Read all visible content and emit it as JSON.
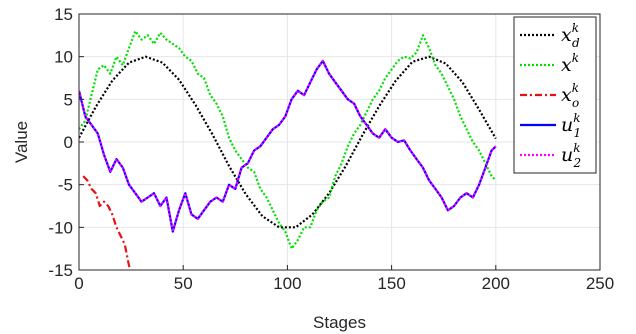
{
  "chart_data": {
    "type": "line",
    "title": "",
    "xlabel": "Stages",
    "ylabel": "Value",
    "xlim": [
      0,
      250
    ],
    "ylim": [
      -15,
      15
    ],
    "xticks": [
      0,
      50,
      100,
      150,
      200,
      250
    ],
    "yticks": [
      -15,
      -10,
      -5,
      0,
      5,
      10,
      15
    ],
    "x_tick_labels": [
      "0",
      "50",
      "100",
      "150",
      "200",
      "250"
    ],
    "y_tick_labels": [
      "-15",
      "-10",
      "-5",
      "0",
      "5",
      "10",
      "15"
    ],
    "grid": true,
    "legend_position": "top-right",
    "series": [
      {
        "name": "x_d^k",
        "base": "x",
        "sup": "k",
        "sub": "d",
        "color": "#000000",
        "style": "dotted",
        "x": [
          0,
          8,
          16,
          24,
          32,
          40,
          48,
          56,
          64,
          72,
          80,
          88,
          96,
          104,
          112,
          120,
          128,
          136,
          144,
          152,
          160,
          168,
          176,
          184,
          192,
          200
        ],
        "y": [
          0.5,
          4.1,
          7.2,
          9.3,
          10.0,
          9.3,
          7.3,
          4.3,
          0.9,
          -2.8,
          -6.1,
          -8.7,
          -10.0,
          -10.0,
          -8.5,
          -6.0,
          -2.8,
          0.8,
          4.2,
          7.2,
          9.4,
          10.0,
          9.2,
          7.0,
          3.8,
          0.4
        ]
      },
      {
        "name": "x^k",
        "base": "x",
        "sup": "k",
        "sub": "",
        "color": "#00e000",
        "style": "dotted",
        "x": [
          0,
          3,
          6,
          9,
          12,
          15,
          18,
          21,
          24,
          27,
          30,
          33,
          36,
          39,
          42,
          45,
          48,
          51,
          54,
          57,
          60,
          63,
          66,
          69,
          72,
          75,
          78,
          81,
          84,
          87,
          90,
          93,
          96,
          99,
          102,
          105,
          108,
          111,
          114,
          117,
          120,
          123,
          126,
          129,
          132,
          135,
          138,
          141,
          144,
          147,
          150,
          153,
          156,
          159,
          162,
          165,
          168,
          171,
          174,
          177,
          180,
          183,
          186,
          189,
          192,
          195,
          198,
          200
        ],
        "y": [
          1.5,
          2.5,
          5.5,
          8.5,
          9.0,
          8.0,
          10.0,
          9.0,
          11.0,
          13.0,
          12.0,
          12.5,
          11.5,
          12.8,
          12.0,
          11.5,
          11.0,
          10.0,
          9.5,
          8.0,
          7.5,
          5.5,
          4.5,
          3.0,
          0.5,
          -1.0,
          -2.0,
          -3.0,
          -3.5,
          -5.5,
          -6.5,
          -8.0,
          -9.5,
          -10.5,
          -12.5,
          -11.5,
          -10.0,
          -10.0,
          -8.0,
          -7.0,
          -6.5,
          -4.0,
          -2.5,
          -0.5,
          1.0,
          2.0,
          3.5,
          5.0,
          6.0,
          7.5,
          8.5,
          9.5,
          10.0,
          9.8,
          10.5,
          12.5,
          11.0,
          9.0,
          8.0,
          6.5,
          5.0,
          3.0,
          1.5,
          0.0,
          -1.0,
          -2.5,
          -4.0,
          -4.5
        ]
      },
      {
        "name": "x_o^k",
        "base": "x",
        "sup": "k",
        "sub": "o",
        "color": "#e81010",
        "style": "dashdot",
        "x": [
          2,
          4,
          6,
          8,
          10,
          12,
          14,
          16,
          18,
          20,
          22,
          24,
          25
        ],
        "y": [
          -4.0,
          -4.5,
          -5.5,
          -6.0,
          -7.5,
          -7.0,
          -7.5,
          -8.5,
          -10.0,
          -11.0,
          -12.0,
          -14.5,
          -15.0
        ]
      },
      {
        "name": "u_1^k",
        "base": "u",
        "sup": "k",
        "sub": "1",
        "color": "#0000ff",
        "style": "solid",
        "x": [
          0,
          3,
          6,
          9,
          12,
          15,
          18,
          21,
          24,
          27,
          30,
          33,
          36,
          39,
          42,
          45,
          48,
          51,
          54,
          57,
          60,
          63,
          66,
          69,
          72,
          75,
          78,
          81,
          84,
          87,
          90,
          93,
          96,
          99,
          102,
          105,
          108,
          111,
          114,
          117,
          120,
          123,
          126,
          129,
          132,
          135,
          138,
          141,
          144,
          147,
          150,
          153,
          156,
          159,
          162,
          165,
          168,
          171,
          174,
          177,
          180,
          183,
          186,
          189,
          192,
          195,
          198,
          200
        ],
        "y": [
          6.0,
          3.0,
          2.0,
          1.0,
          -1.5,
          -3.5,
          -2.0,
          -3.0,
          -5.0,
          -6.0,
          -7.0,
          -6.5,
          -6.0,
          -7.5,
          -6.5,
          -10.5,
          -8.0,
          -6.0,
          -8.5,
          -9.0,
          -8.0,
          -7.0,
          -6.5,
          -7.0,
          -5.0,
          -5.5,
          -3.0,
          -2.5,
          -1.0,
          -0.5,
          0.5,
          1.5,
          2.0,
          3.0,
          5.0,
          6.0,
          5.5,
          7.0,
          8.5,
          9.5,
          8.0,
          7.0,
          6.0,
          5.0,
          4.5,
          3.0,
          2.0,
          1.0,
          0.5,
          1.5,
          0.5,
          0.0,
          0.2,
          -1.0,
          -2.0,
          -3.0,
          -4.5,
          -5.5,
          -6.5,
          -8.0,
          -7.5,
          -6.5,
          -6.0,
          -6.5,
          -5.0,
          -3.0,
          -1.0,
          -0.5
        ]
      },
      {
        "name": "u_2^k",
        "base": "u",
        "sup": "k",
        "sub": "2",
        "color": "#ff00ff",
        "style": "dotted",
        "x": [
          0,
          3,
          6,
          9,
          12,
          15,
          18,
          21,
          24,
          27,
          30,
          33,
          36,
          39,
          42,
          45,
          48,
          51,
          54,
          57,
          60,
          63,
          66,
          69,
          72,
          75,
          78,
          81,
          84,
          87,
          90,
          93,
          96,
          99,
          102,
          105,
          108,
          111,
          114,
          117,
          120,
          123,
          126,
          129,
          132,
          135,
          138,
          141,
          144,
          147,
          150,
          153,
          156,
          159,
          162,
          165,
          168,
          171,
          174,
          177,
          180,
          183,
          186,
          189,
          192,
          195,
          198,
          200
        ],
        "y": [
          6.0,
          3.0,
          2.0,
          1.0,
          -1.5,
          -3.5,
          -2.0,
          -3.0,
          -5.0,
          -6.0,
          -7.0,
          -6.5,
          -6.0,
          -7.5,
          -6.5,
          -10.5,
          -8.0,
          -6.0,
          -8.5,
          -9.0,
          -8.0,
          -7.0,
          -6.5,
          -7.0,
          -5.0,
          -5.5,
          -3.0,
          -2.5,
          -1.0,
          -0.5,
          0.5,
          1.5,
          2.0,
          3.0,
          5.0,
          6.0,
          5.5,
          7.0,
          8.5,
          9.5,
          8.0,
          7.0,
          6.0,
          5.0,
          4.5,
          3.0,
          2.0,
          1.0,
          0.5,
          1.5,
          0.5,
          0.0,
          0.2,
          -1.0,
          -2.0,
          -3.0,
          -4.5,
          -5.5,
          -6.5,
          -8.0,
          -7.5,
          -6.5,
          -6.0,
          -6.5,
          -5.0,
          -3.0,
          -1.0,
          -0.5
        ]
      }
    ]
  }
}
